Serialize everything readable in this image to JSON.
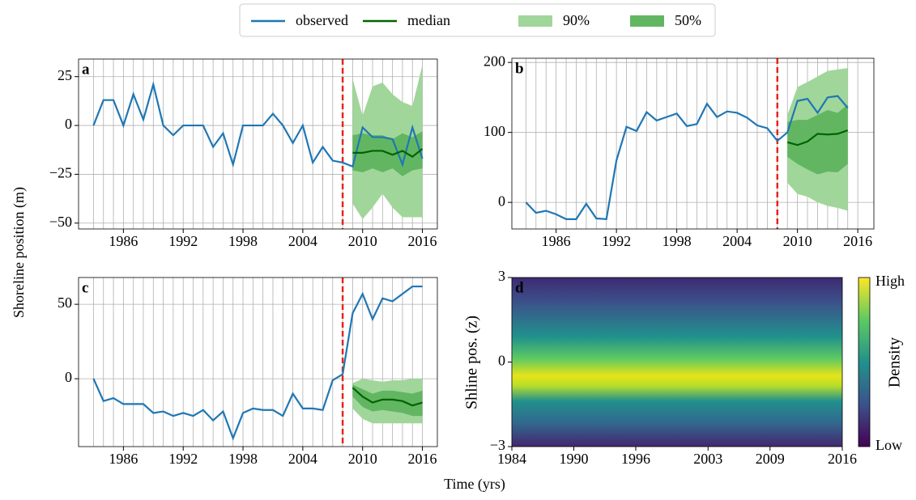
{
  "legend": [
    {
      "name": "observed",
      "color": "#1f77b4"
    },
    {
      "name": "median",
      "color": "#006400"
    },
    {
      "name": "90%",
      "color": "#a1d69a"
    },
    {
      "name": "50%",
      "color": "#62b662"
    }
  ],
  "ylabel": "Shoreline position (m)",
  "xlabel": "Time (yrs)",
  "forecast_color": "#e8241c",
  "year_grid": [
    1983,
    1984,
    1985,
    1986,
    1987,
    1988,
    1989,
    1990,
    1991,
    1992,
    1993,
    1994,
    1995,
    1996,
    1997,
    1998,
    1999,
    2000,
    2001,
    2002,
    2003,
    2004,
    2005,
    2006,
    2007,
    2008,
    2009,
    2010,
    2011,
    2012,
    2013,
    2014,
    2015,
    2016
  ],
  "chart_data": [
    {
      "type": "line",
      "label": "a",
      "xlim": [
        1981.5,
        2017.5
      ],
      "ylim": [
        -53,
        34
      ],
      "xticks": [
        1986,
        1992,
        1998,
        2004,
        2010,
        2016
      ],
      "yticks": [
        25,
        0,
        {
          "value": -25,
          "label": "−25"
        },
        {
          "value": -50,
          "label": "−50"
        }
      ],
      "forecast_start": 2008,
      "observed": {
        "x": [
          1983,
          1984,
          1985,
          1986,
          1987,
          1988,
          1989,
          1990,
          1991,
          1992,
          1993,
          1994,
          1995,
          1996,
          1997,
          1998,
          1999,
          2000,
          2001,
          2002,
          2003,
          2004,
          2005,
          2006,
          2007,
          2008,
          2009,
          2010,
          2011,
          2012,
          2013,
          2014,
          2015,
          2016
        ],
        "values": [
          0,
          13,
          13,
          0,
          16,
          3,
          21,
          0,
          -5,
          0,
          0,
          0,
          -11,
          -4,
          -20,
          0,
          0,
          0,
          6,
          0,
          -9,
          0,
          -19,
          -11,
          -18,
          -19,
          -21,
          -1,
          -6,
          -6,
          -7,
          -20,
          -1,
          -17
        ]
      },
      "forecast_x": [
        2009,
        2010,
        2011,
        2012,
        2013,
        2014,
        2015,
        2016
      ],
      "median": [
        -14,
        -14,
        -13,
        -13,
        -15,
        -13,
        -16,
        -12
      ],
      "p90": {
        "lower": [
          -40,
          -48,
          -42,
          -35,
          -42,
          -47,
          -47,
          -47
        ],
        "upper": [
          24,
          5,
          20,
          22,
          16,
          12,
          10,
          31
        ]
      },
      "p50": {
        "lower": [
          -23,
          -24,
          -22,
          -24,
          -22,
          -26,
          -23,
          -22
        ],
        "upper": [
          -5,
          -4,
          -5,
          -5,
          -7,
          -4,
          -6,
          -3
        ]
      }
    },
    {
      "type": "line",
      "label": "b",
      "xlim": [
        1981.6,
        2017.6
      ],
      "ylim": [
        -38,
        206
      ],
      "xticks": [
        1986,
        1992,
        1998,
        2004,
        2010,
        2016
      ],
      "yticks": [
        200,
        100,
        0
      ],
      "forecast_start": 2008,
      "observed": {
        "x": [
          1983,
          1984,
          1985,
          1986,
          1987,
          1988,
          1989,
          1990,
          1991,
          1992,
          1993,
          1994,
          1995,
          1996,
          1997,
          1998,
          1999,
          2000,
          2001,
          2002,
          2003,
          2004,
          2005,
          2006,
          2007,
          2008,
          2009,
          2010,
          2011,
          2012,
          2013,
          2014,
          2015
        ],
        "values": [
          0,
          -15,
          -12,
          -17,
          -24,
          -24,
          -2,
          -23,
          -24,
          60,
          108,
          102,
          129,
          117,
          122,
          127,
          109,
          112,
          141,
          122,
          130,
          128,
          121,
          110,
          106,
          88,
          100,
          145,
          148,
          128,
          150,
          152,
          135
        ]
      },
      "forecast_x": [
        2009,
        2010,
        2011,
        2012,
        2013,
        2014,
        2015
      ],
      "median": [
        86,
        82,
        87,
        98,
        97,
        98,
        103
      ],
      "p90": {
        "lower": [
          28,
          12,
          8,
          0,
          -5,
          -8,
          -12
        ],
        "upper": [
          125,
          165,
          172,
          180,
          188,
          190,
          192
        ]
      },
      "p50": {
        "lower": [
          65,
          55,
          47,
          40,
          44,
          43,
          55
        ],
        "upper": [
          115,
          118,
          118,
          125,
          132,
          128,
          140
        ]
      }
    },
    {
      "type": "line",
      "label": "c",
      "xlim": [
        1981.5,
        2017.5
      ],
      "ylim": [
        -45.6,
        68
      ],
      "xticks": [
        1986,
        1992,
        1998,
        2004,
        2010,
        2016
      ],
      "yticks": [
        50,
        0
      ],
      "forecast_start": 2008,
      "observed": {
        "x": [
          1983,
          1984,
          1985,
          1986,
          1987,
          1988,
          1989,
          1990,
          1991,
          1992,
          1993,
          1994,
          1995,
          1996,
          1997,
          1998,
          1999,
          2000,
          2001,
          2002,
          2003,
          2004,
          2005,
          2006,
          2007,
          2008,
          2009,
          2010,
          2011,
          2012,
          2013,
          2014,
          2015,
          2016
        ],
        "values": [
          0,
          -15,
          -13,
          -17,
          -17,
          -17,
          -23,
          -22,
          -25,
          -23,
          -25,
          -21,
          -28,
          -22,
          -40,
          -23,
          -20,
          -21,
          -21,
          -25,
          -10,
          -20,
          -20,
          -21,
          -1,
          3,
          44,
          57,
          40,
          54,
          52,
          57,
          62,
          62
        ]
      },
      "forecast_x": [
        2009,
        2010,
        2011,
        2012,
        2013,
        2014,
        2015,
        2016
      ],
      "median": [
        -6,
        -12,
        -16,
        -14,
        -14,
        -15,
        -18,
        -16
      ],
      "p90": {
        "lower": [
          -20,
          -27,
          -30,
          -30,
          -30,
          -30,
          -30,
          -30
        ],
        "upper": [
          -3,
          0,
          -1,
          -2,
          -1,
          -1,
          0,
          0
        ]
      },
      "p50": {
        "lower": [
          -12,
          -19,
          -22,
          -21,
          -22,
          -23,
          -25,
          -25
        ],
        "upper": [
          -4,
          -7,
          -10,
          -8,
          -8,
          -9,
          -10,
          -8
        ]
      }
    },
    {
      "type": "density",
      "label": "d",
      "ylabel": "Shline pos. (z)",
      "xlim": [
        1984,
        2016
      ],
      "ylim": [
        -3,
        3
      ],
      "xticks": [
        1984,
        1990,
        1996,
        2003,
        2009,
        2016
      ],
      "yticks": [
        3,
        0,
        {
          "value": -3,
          "label": "−3"
        }
      ],
      "colorbar": {
        "label": "Density",
        "high": "High",
        "low": "Low"
      }
    }
  ]
}
